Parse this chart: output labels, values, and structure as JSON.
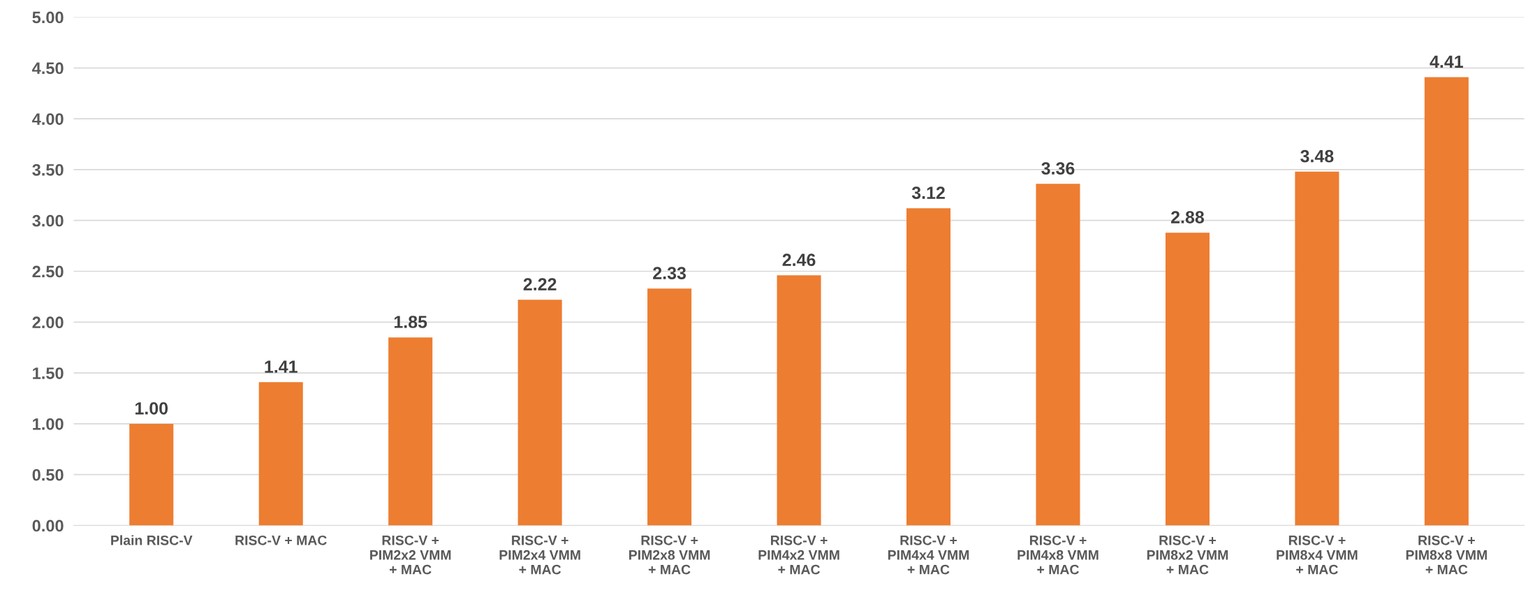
{
  "chart_data": {
    "type": "bar",
    "categories": [
      "Plain RISC-V",
      "RISC-V + MAC",
      "RISC-V +\nPIM2x2 VMM\n+ MAC",
      "RISC-V +\nPIM2x4 VMM\n+ MAC",
      "RISC-V +\nPIM2x8 VMM\n+ MAC",
      "RISC-V +\nPIM4x2 VMM\n+ MAC",
      "RISC-V +\nPIM4x4 VMM\n+ MAC",
      "RISC-V +\nPIM4x8 VMM\n+ MAC",
      "RISC-V +\nPIM8x2 VMM\n+ MAC",
      "RISC-V +\nPIM8x4 VMM\n+ MAC",
      "RISC-V +\nPIM8x8 VMM\n+ MAC"
    ],
    "values": [
      1.0,
      1.41,
      1.85,
      2.22,
      2.33,
      2.46,
      3.12,
      3.36,
      2.88,
      3.48,
      4.41
    ],
    "value_labels": [
      "1.00",
      "1.41",
      "1.85",
      "2.22",
      "2.33",
      "2.46",
      "3.12",
      "3.36",
      "2.88",
      "3.48",
      "4.41"
    ],
    "color": "#ed7d31",
    "ylim": [
      0,
      5
    ],
    "yticks": [
      {
        "value": 0,
        "label": "0.00"
      },
      {
        "value": 0.5,
        "label": "0.50"
      },
      {
        "value": 1,
        "label": "1.00"
      },
      {
        "value": 1.5,
        "label": "1.50"
      },
      {
        "value": 2,
        "label": "2.00"
      },
      {
        "value": 2.5,
        "label": "2.50"
      },
      {
        "value": 3,
        "label": "3.00"
      },
      {
        "value": 3.5,
        "label": "3.50"
      },
      {
        "value": 4,
        "label": "4.00"
      },
      {
        "value": 4.5,
        "label": "4.50"
      },
      {
        "value": 5,
        "label": "5.00"
      }
    ],
    "grid": "y"
  }
}
